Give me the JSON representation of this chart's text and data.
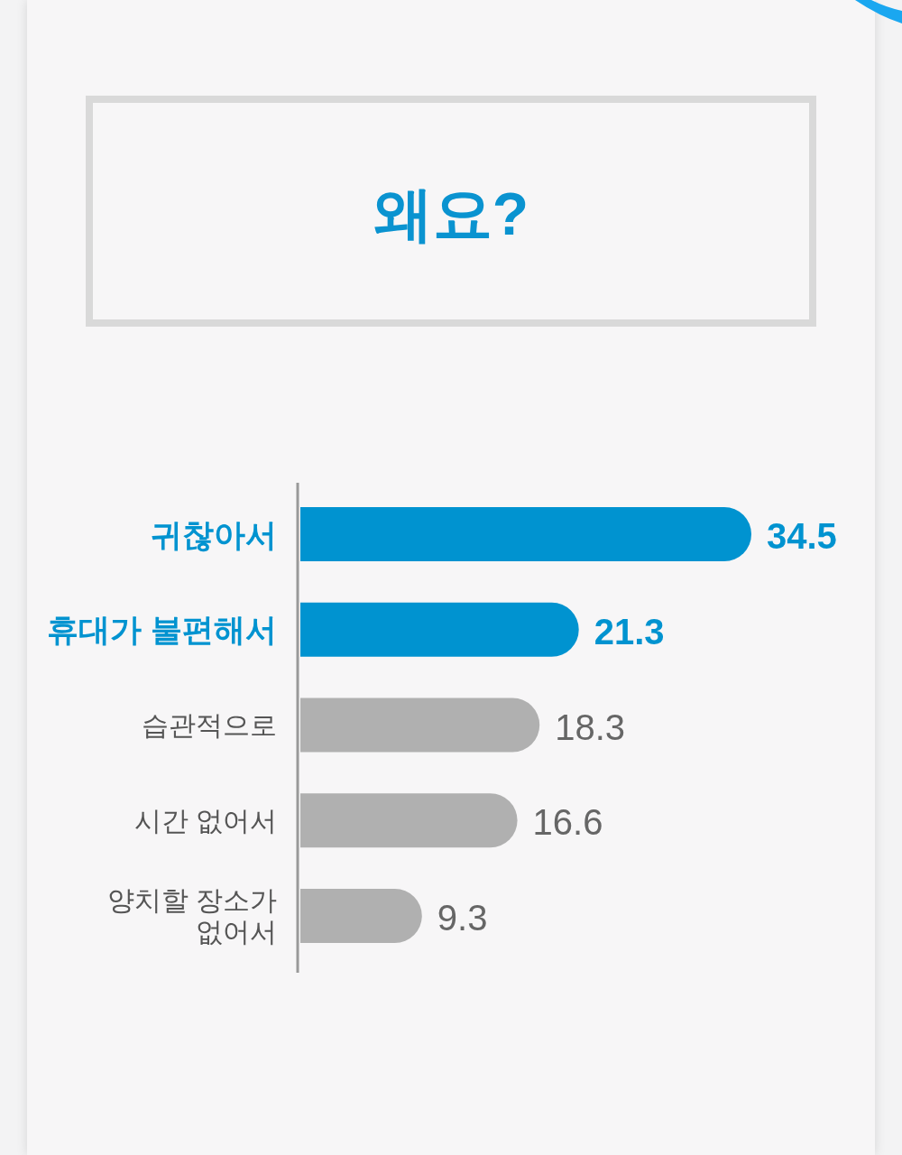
{
  "chart_data": {
    "type": "bar",
    "orientation": "horizontal",
    "title": "왜요?",
    "categories": [
      "귀찮아서",
      "휴대가 불편해서",
      "습관적으로",
      "시간 없어서",
      "양치할 장소가 없어서"
    ],
    "values": [
      34.5,
      21.3,
      18.3,
      16.6,
      9.3
    ],
    "colors": [
      "#0093d0",
      "#0093d0",
      "#b0b0b0",
      "#b0b0b0",
      "#b0b0b0"
    ],
    "data_labels": true
  }
}
